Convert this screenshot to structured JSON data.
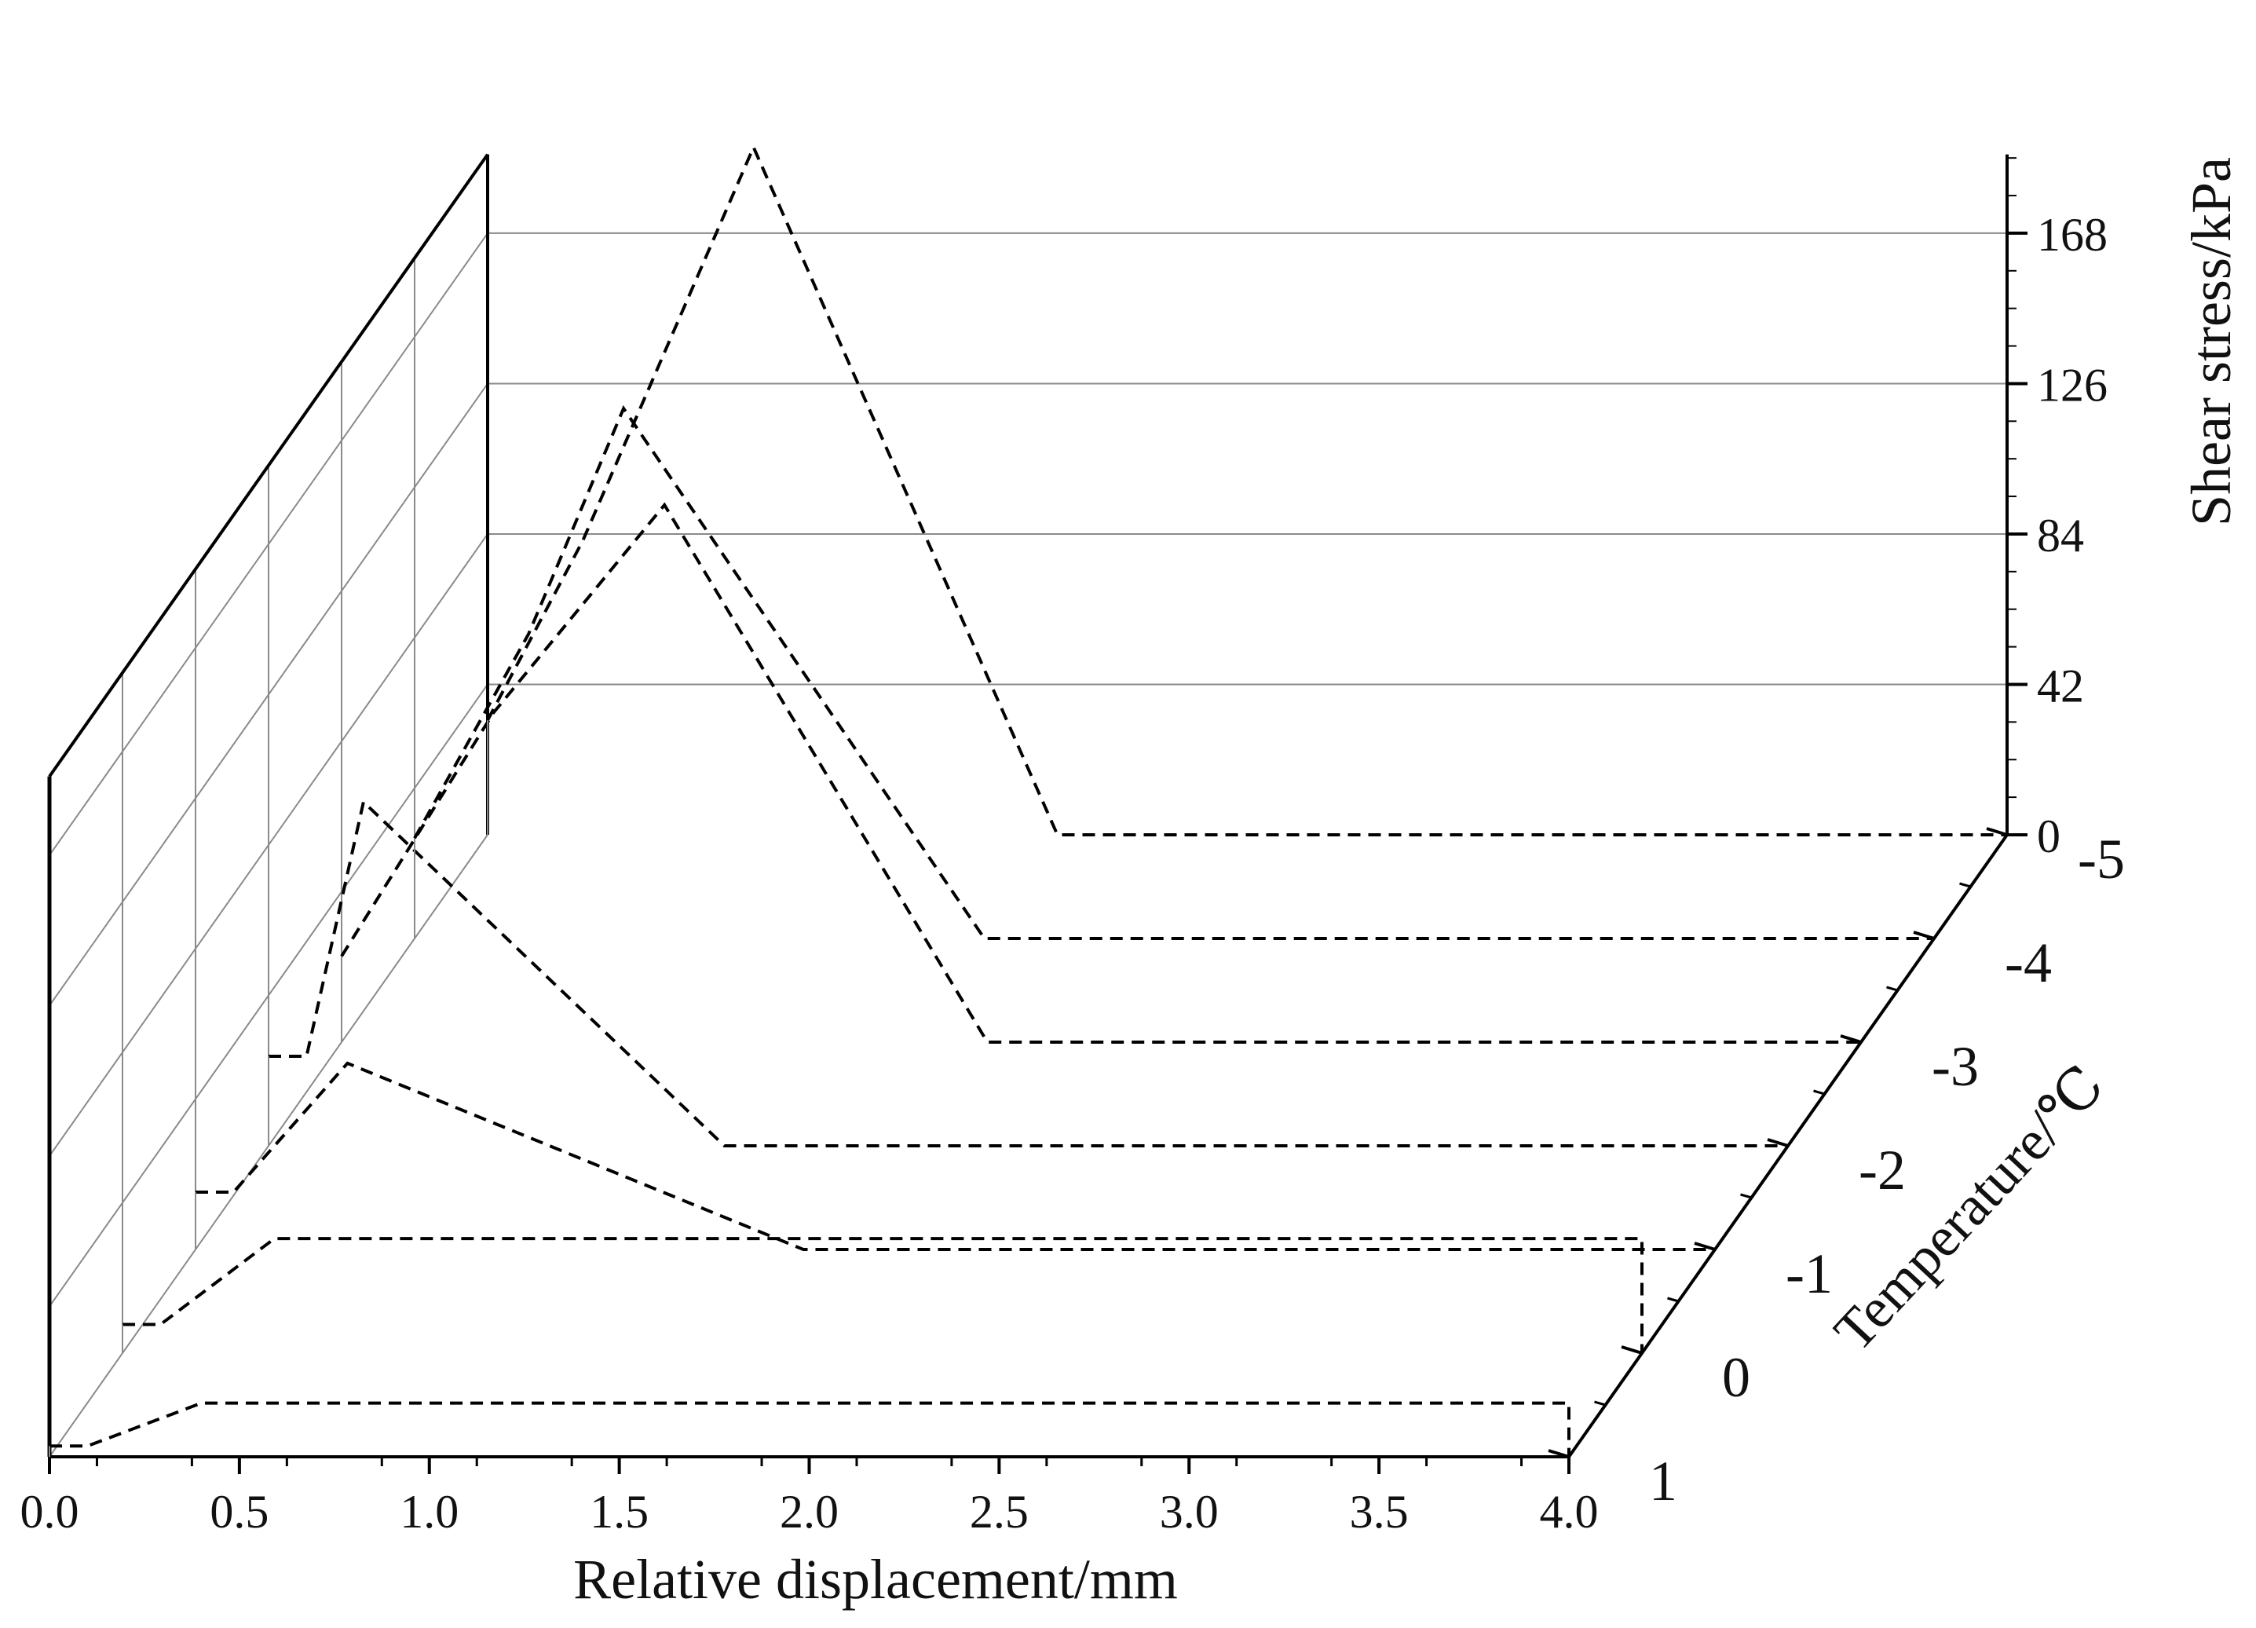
{
  "chart_data": {
    "type": "line",
    "subtype": "3d-waterfall",
    "title": "",
    "xlabel": "Relative displacement/mm",
    "ylabel": "Temperature/℃",
    "zlabel": "Shear stress/kPa",
    "xlim": [
      0,
      4
    ],
    "zlim": [
      0,
      200
    ],
    "x_ticks": [
      "0.0",
      "0.5",
      "1.0",
      "1.5",
      "2.0",
      "2.5",
      "3.0",
      "3.5",
      "4.0"
    ],
    "y_ticks": [
      "1",
      "0",
      "-1",
      "-2",
      "-3",
      "-4",
      "-5"
    ],
    "z_ticks": [
      "0",
      "42",
      "84",
      "126",
      "168"
    ],
    "grid": true,
    "line_style": "dashed",
    "line_color": "#000000",
    "series": [
      {
        "temperature": 1,
        "x": [
          0.0,
          0.1,
          0.4,
          4.0,
          4.0
        ],
        "y": [
          3,
          3,
          15,
          15,
          0
        ]
      },
      {
        "temperature": 0,
        "x": [
          0.0,
          0.1,
          0.4,
          4.0,
          4.0
        ],
        "y": [
          8,
          8,
          32,
          32,
          0
        ]
      },
      {
        "temperature": -1,
        "x": [
          0.0,
          0.1,
          0.4,
          1.6,
          4.0,
          4.0
        ],
        "y": [
          16,
          16,
          52,
          0,
          0,
          0
        ]
      },
      {
        "temperature": -2,
        "x": [
          0.0,
          0.1,
          0.25,
          1.2,
          4.0,
          4.0
        ],
        "y": [
          25,
          25,
          96,
          0,
          0,
          0
        ]
      },
      {
        "temperature": -3,
        "x": [
          0.0,
          0.4,
          0.85,
          1.7,
          4.0,
          4.0
        ],
        "y": [
          24,
          92,
          150,
          0,
          0,
          0
        ]
      },
      {
        "temperature": -4,
        "x": [
          0.0,
          0.3,
          0.55,
          1.5,
          4.0,
          4.0
        ],
        "y": [
          28,
          85,
          148,
          0,
          0,
          0
        ]
      },
      {
        "temperature": -5,
        "x": [
          0.0,
          0.25,
          0.7,
          1.5,
          4.0,
          4.0
        ],
        "y": [
          32,
          82,
          192,
          0,
          0,
          0
        ]
      }
    ]
  }
}
